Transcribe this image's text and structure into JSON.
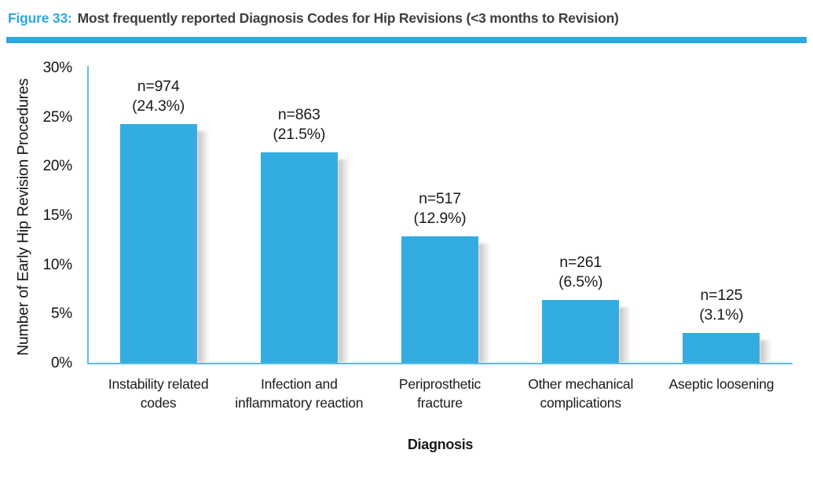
{
  "header": {
    "figure_label": "Figure 33:",
    "title": "Most frequently reported Diagnosis Codes for Hip Revisions (<3 months to Revision)"
  },
  "chart_data": {
    "type": "bar",
    "title": "Figure 33: Most frequently reported Diagnosis Codes for Hip Revisions (<3 months to Revision)",
    "xlabel": "Diagnosis",
    "ylabel": "Number of Early Hip Revision Procedures",
    "categories": [
      "Instability related codes",
      "Infection and inflammatory reaction",
      "Periprosthetic fracture",
      "Other mechanical complications",
      "Aseptic loosening"
    ],
    "values": [
      24.3,
      21.5,
      12.9,
      6.5,
      3.1
    ],
    "counts": [
      974,
      863,
      517,
      261,
      125
    ],
    "bar_labels": [
      {
        "n": "n=974",
        "pct": "(24.3%)"
      },
      {
        "n": "n=863",
        "pct": "(21.5%)"
      },
      {
        "n": "n=517",
        "pct": "(12.9%)"
      },
      {
        "n": "n=261",
        "pct": "(6.5%)"
      },
      {
        "n": "n=125",
        "pct": "(3.1%)"
      }
    ],
    "ylim": [
      0,
      30
    ],
    "y_tick_step": 5,
    "y_ticks": [
      "0%",
      "5%",
      "10%",
      "15%",
      "20%",
      "25%",
      "30%"
    ],
    "grid": false,
    "colors": {
      "bar": "#33ACE2",
      "axis": "#56BDE8",
      "accent": "#2BA8E0",
      "title_text": "#3E3E3E",
      "label_text": "#1A1A1A"
    }
  }
}
